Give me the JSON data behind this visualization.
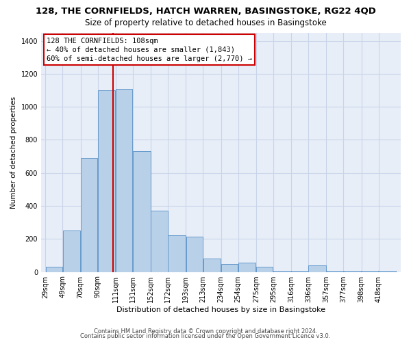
{
  "title": "128, THE CORNFIELDS, HATCH WARREN, BASINGSTOKE, RG22 4QD",
  "subtitle": "Size of property relative to detached houses in Basingstoke",
  "xlabel": "Distribution of detached houses by size in Basingstoke",
  "ylabel": "Number of detached properties",
  "annotation_line": "128 THE CORNFIELDS: 108sqm\n← 40% of detached houses are smaller (1,843)\n60% of semi-detached houses are larger (2,770) →",
  "property_size": 108,
  "bar_color": "#b8d0e8",
  "bar_edge_color": "#6699cc",
  "vline_color": "#cc0000",
  "annotation_box_color": "#cc0000",
  "plot_bg_color": "#e8eef8",
  "grid_color": "#c8d4e8",
  "footnote1": "Contains HM Land Registry data © Crown copyright and database right 2024.",
  "footnote2": "Contains public sector information licensed under the Open Government Licence v3.0.",
  "bin_edges": [
    29,
    49,
    70,
    90,
    111,
    131,
    152,
    172,
    193,
    213,
    234,
    254,
    275,
    295,
    316,
    336,
    357,
    377,
    398,
    418,
    439
  ],
  "counts": [
    30,
    250,
    690,
    1100,
    1110,
    730,
    370,
    220,
    215,
    80,
    50,
    55,
    30,
    5,
    5,
    40,
    5,
    5,
    5,
    5
  ],
  "ylim": [
    0,
    1450
  ],
  "yticks": [
    0,
    200,
    400,
    600,
    800,
    1000,
    1200,
    1400
  ],
  "title_fontsize": 9.5,
  "subtitle_fontsize": 8.5,
  "xlabel_fontsize": 8,
  "ylabel_fontsize": 7.5,
  "tick_fontsize": 7,
  "annotation_fontsize": 7.5,
  "footnote_fontsize": 6
}
